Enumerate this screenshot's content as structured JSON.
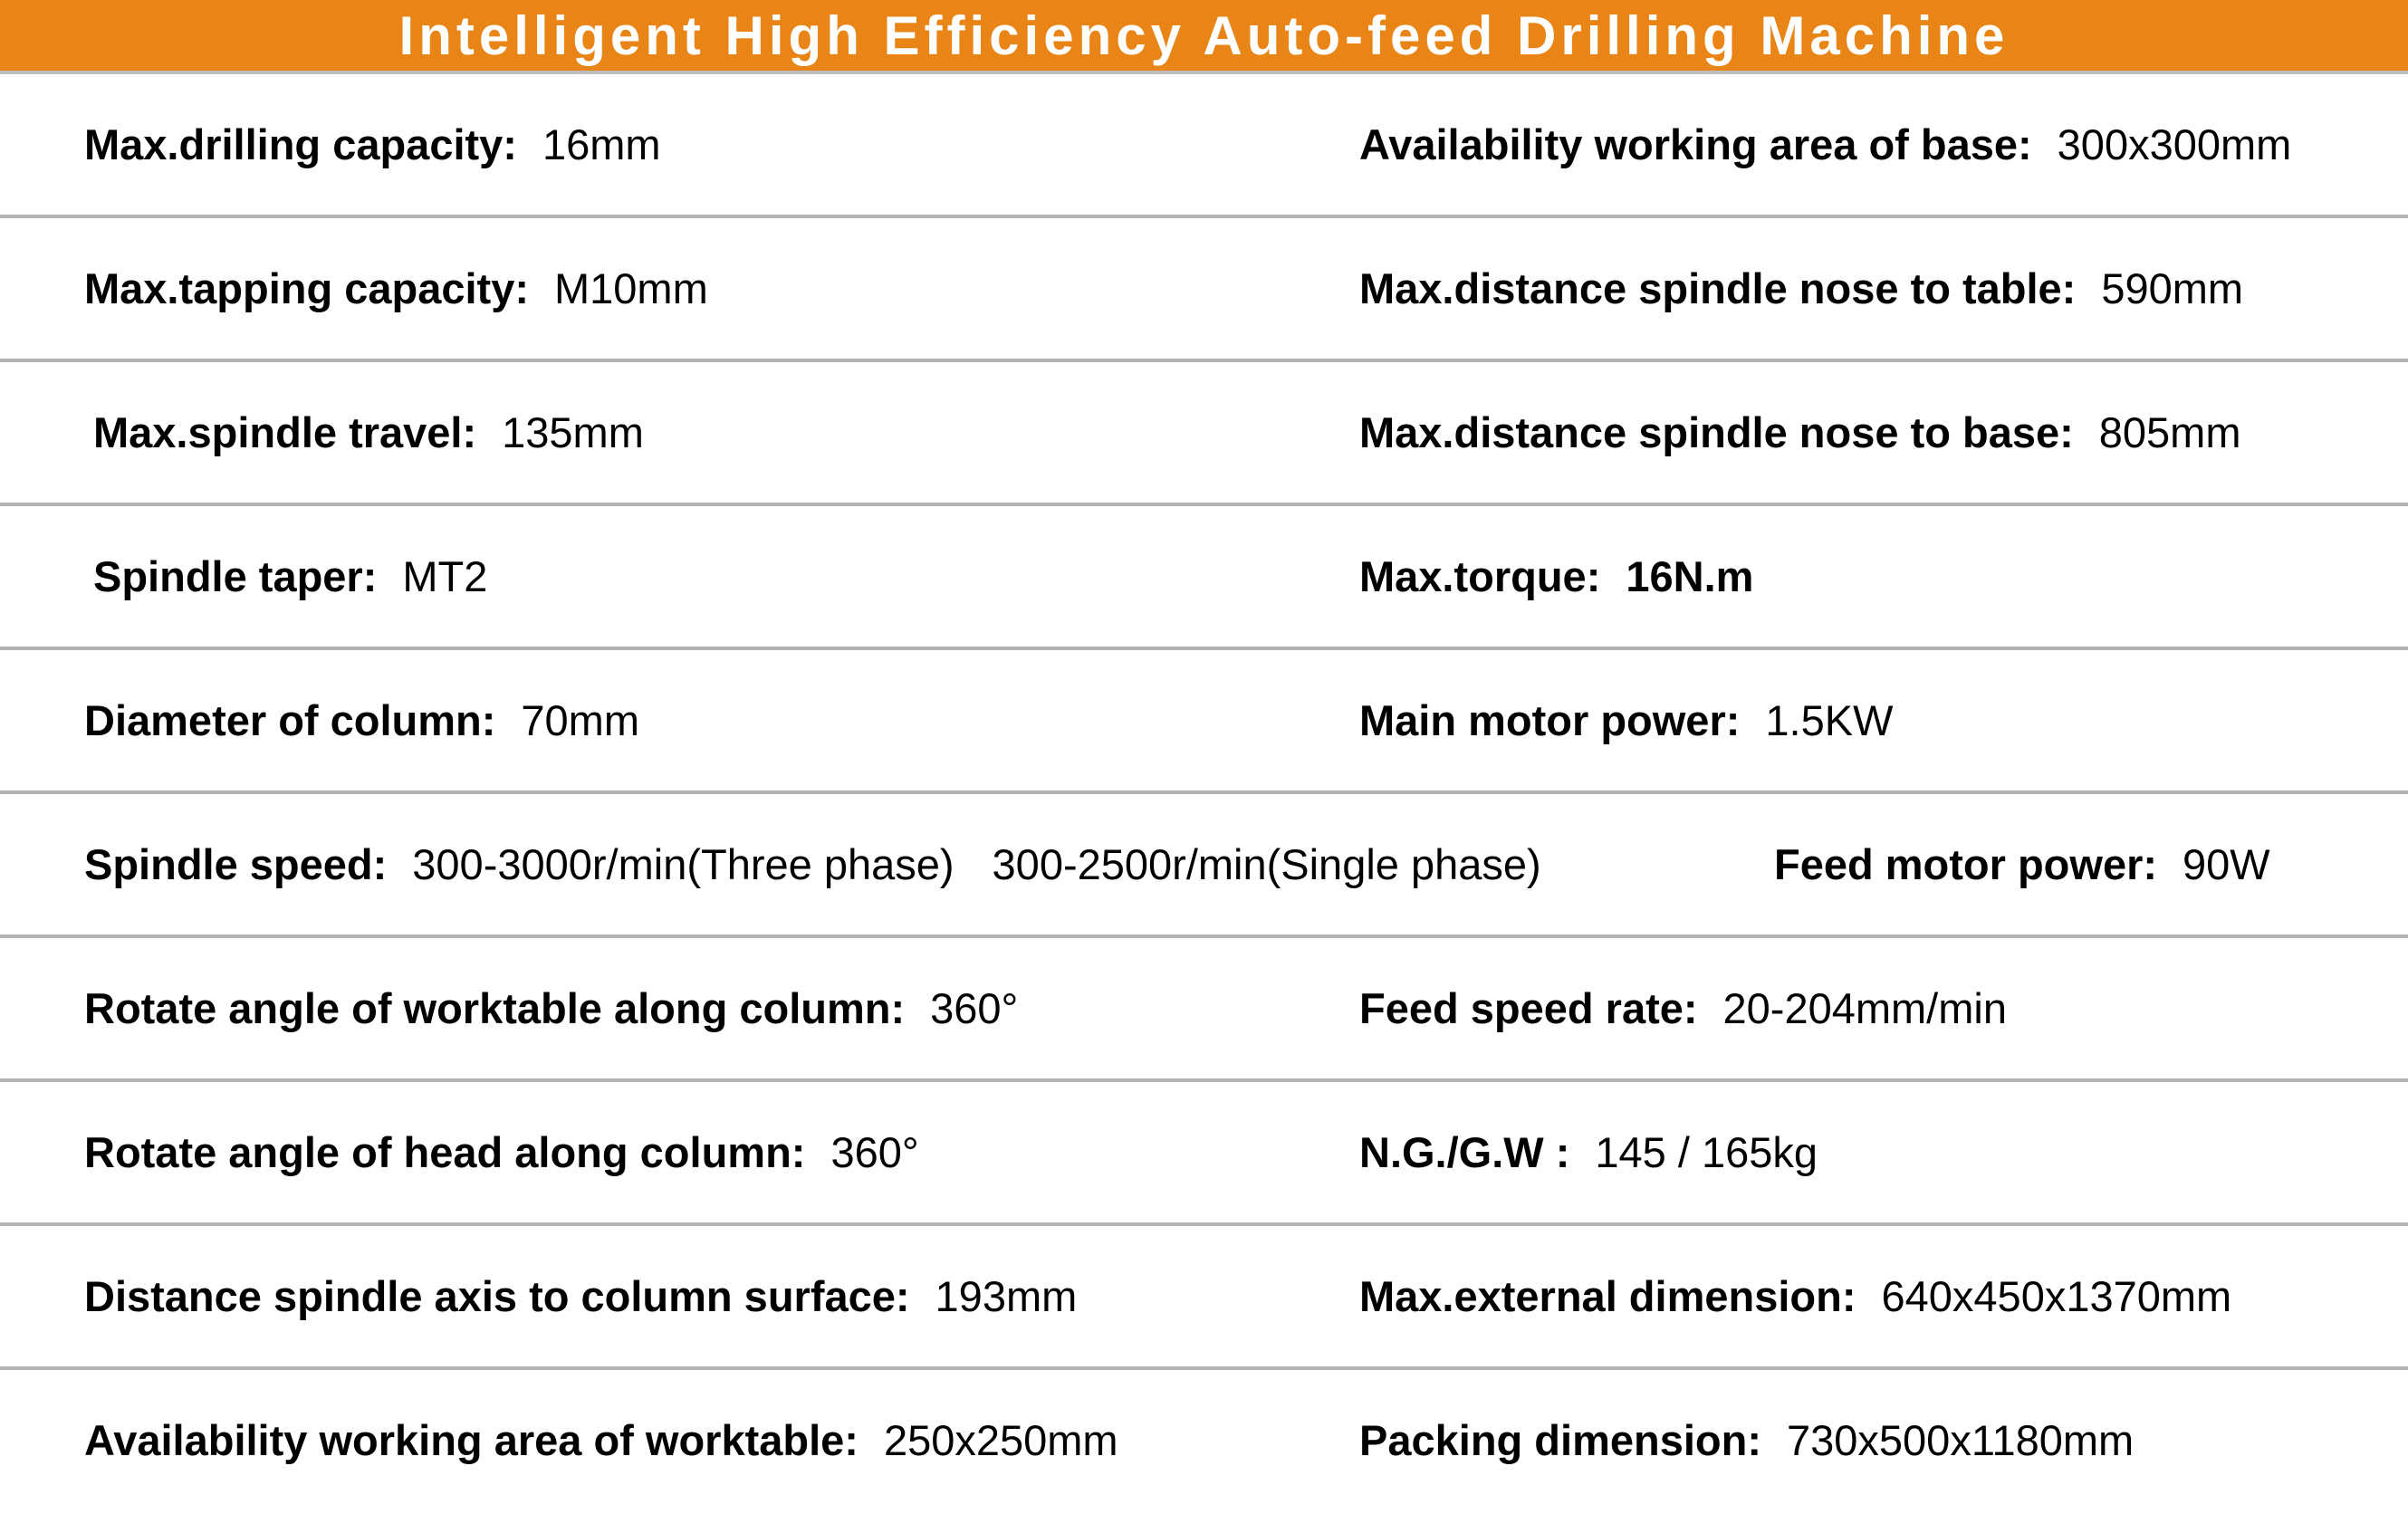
{
  "title": "Intelligent High Efficiency Auto-feed Drilling Machine",
  "colors": {
    "header": "#e98516",
    "divider": "#b3b3b3"
  },
  "rows": [
    {
      "left": {
        "label": "Max.drilling capacity:",
        "value": "16mm"
      },
      "right": {
        "label": "Availability working area of base:",
        "value": "300x300mm"
      }
    },
    {
      "left": {
        "label": "Max.tapping capacity:",
        "value": "M10mm"
      },
      "right": {
        "label": "Max.distance spindle nose to table:",
        "value": "590mm"
      }
    },
    {
      "left": {
        "label": "Max.spindle travel:",
        "value": "135mm"
      },
      "right": {
        "label": "Max.distance spindle nose to base:",
        "value": "805mm"
      }
    },
    {
      "left": {
        "label": "Spindle taper:",
        "value": "MT2"
      },
      "right": {
        "label": "Max.torque:",
        "value": "16N.m"
      }
    },
    {
      "left": {
        "label": "Diameter of column:",
        "value": "70mm"
      },
      "right": {
        "label": "Main motor power:",
        "value": "1.5KW"
      }
    },
    {
      "left": {
        "label": "Spindle speed:",
        "value": "300-3000r/min(Three phase)",
        "value2": "300-2500r/min(Single phase)"
      },
      "right": {
        "label": "Feed motor power:",
        "value": "90W"
      }
    },
    {
      "left": {
        "label": "Rotate angle of worktable along column:",
        "value": "360°"
      },
      "right": {
        "label": "Feed speed rate:",
        "value": "20-204mm/min"
      }
    },
    {
      "left": {
        "label": "Rotate angle of head along column:",
        "value": "360°"
      },
      "right": {
        "label": "N.G./G.W :",
        "value": "145 / 165kg"
      }
    },
    {
      "left": {
        "label": "Distance spindle axis to column surface:",
        "value": "193mm"
      },
      "right": {
        "label": "Max.external dimension:",
        "value": "640x450x1370mm"
      }
    },
    {
      "left": {
        "label": "Availability working area of worktable:",
        "value": "250x250mm"
      },
      "right": {
        "label": "Packing dimension:",
        "value": "730x500x1180mm"
      }
    }
  ]
}
